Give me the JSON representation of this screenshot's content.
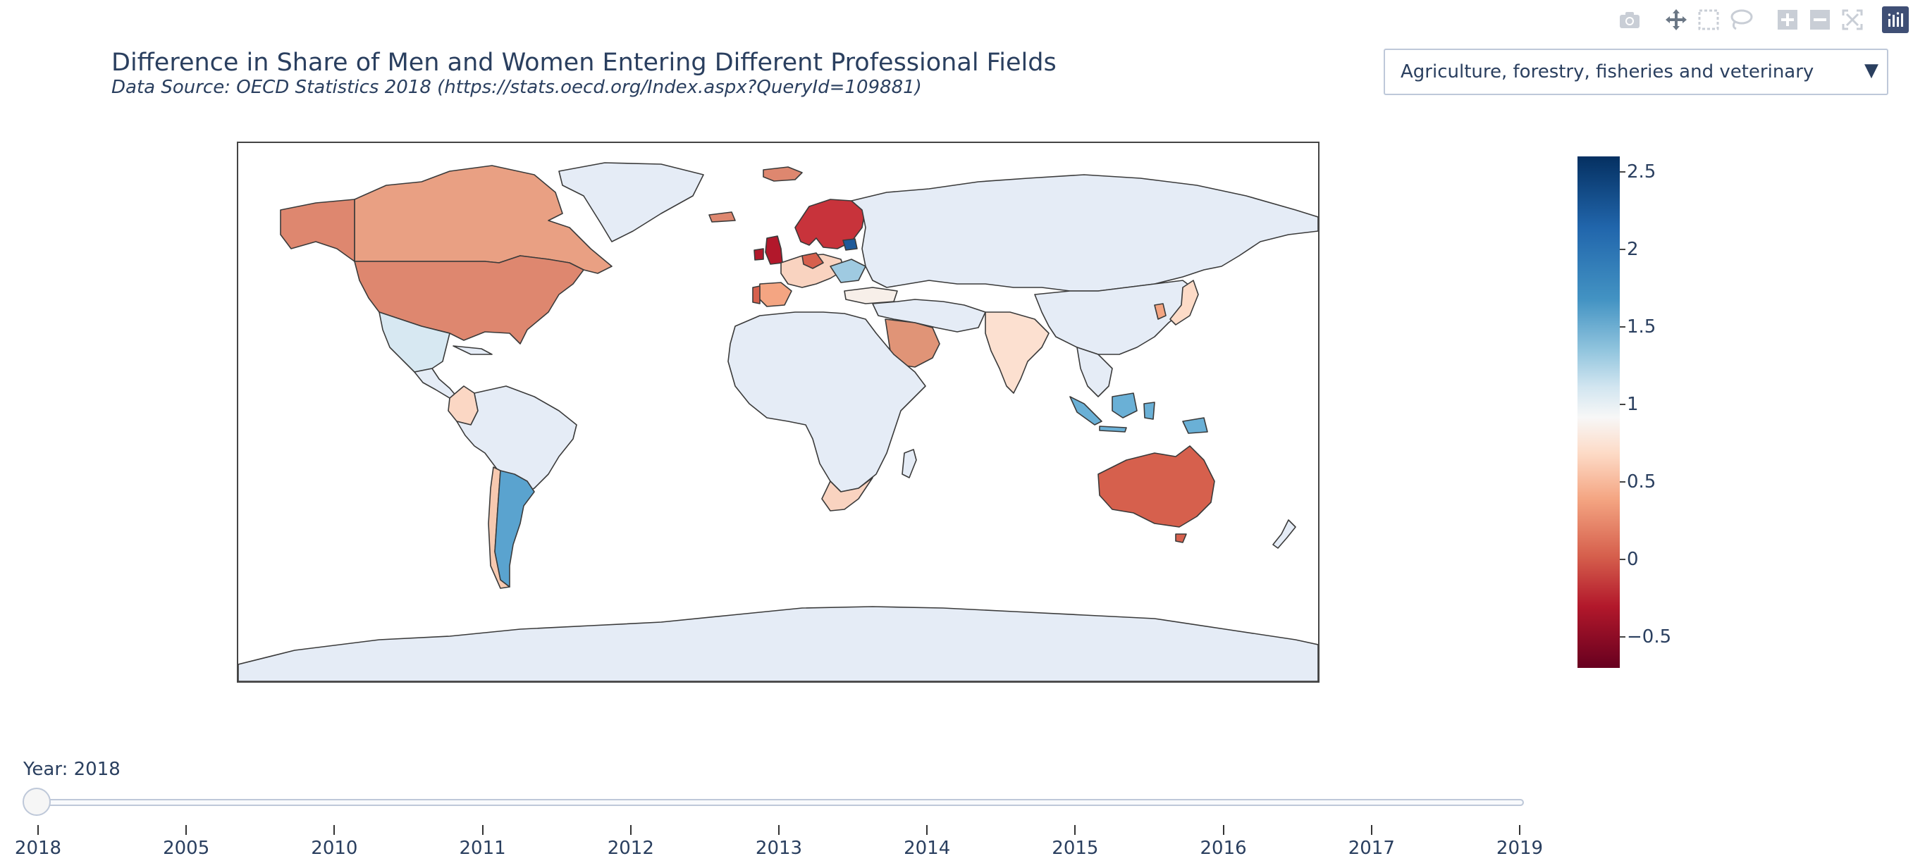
{
  "title": "Difference in Share of Men and Women Entering Different Professional Fields",
  "subtitle": "Data Source: OECD Statistics 2018 (https://stats.oecd.org/Index.aspx?QueryId=109881)",
  "dropdown": {
    "selected": "Agriculture, forestry, fisheries and veterinary",
    "arrow": "▼"
  },
  "modebar": [
    "camera-icon",
    "pan-icon",
    "box-select-icon",
    "lasso-icon",
    "zoom-in-icon",
    "zoom-out-icon",
    "reset-axes-icon",
    "plotly-logo"
  ],
  "colorbar": {
    "colorscale": "RdBu",
    "range": [
      -0.7,
      2.6
    ],
    "ticks": [
      "2.5",
      "2",
      "1.5",
      "1",
      "0.5",
      "0",
      "−0.5"
    ],
    "tick_values": [
      2.5,
      2,
      1.5,
      1,
      0.5,
      0,
      -0.5
    ]
  },
  "slider": {
    "current_label": "Year: 2018",
    "steps": [
      "2018",
      "2005",
      "2010",
      "2011",
      "2012",
      "2013",
      "2014",
      "2015",
      "2016",
      "2017",
      "2019"
    ],
    "active_index": 0
  },
  "map_colors": {
    "no_data": "#e5ecf6",
    "usa": "#de876f",
    "canada": "#e9a083",
    "nordics": "#c8333b",
    "uk": "#b2182b",
    "australia": "#d6604d",
    "argentina": "#5aa3cf",
    "indonesia": "#6ab0d6",
    "saudi": "#e09477",
    "india": "#fce0d0",
    "south_africa": "#f9d3c0",
    "mexico": "#d7e8f2",
    "colombia": "#fbd7c4"
  }
}
